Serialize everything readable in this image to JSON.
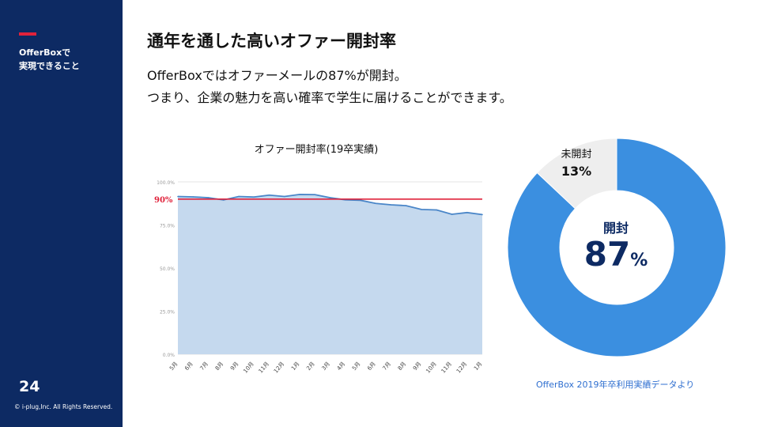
{
  "sidebar": {
    "title": "OfferBoxで\n実現できること",
    "page_number": "24",
    "copyright": "© i-plug,Inc. All Rights Reserved."
  },
  "header": {
    "title": "通年を通した高いオファー開封率",
    "line1": "OfferBoxではオファーメールの87%が開封。",
    "line2": "つまり、企業の魅力を高い確率で学生に届けることができます。"
  },
  "colors": {
    "sidebar": "#0d2a63",
    "accent": "#e0223b",
    "area_fill": "#c5d9ee",
    "area_line": "#4a86c8",
    "donut_main": "#3b8fe0",
    "donut_rest": "#eeeeee"
  },
  "chart_data": [
    {
      "type": "area",
      "title": "オファー開封率(19卒実績)",
      "x": [
        "5月",
        "6月",
        "7月",
        "8月",
        "9月",
        "10月",
        "11月",
        "12月",
        "1月",
        "2月",
        "3月",
        "4月",
        "5月",
        "6月",
        "7月",
        "8月",
        "9月",
        "10月",
        "11月",
        "12月",
        "1月"
      ],
      "series": [
        {
          "values": [
            91.5,
            91.3,
            90.8,
            89.5,
            91.5,
            91.2,
            92.3,
            91.5,
            92.7,
            92.6,
            90.8,
            89.6,
            89.3,
            87.5,
            86.7,
            86.2,
            84.0,
            83.7,
            81.2,
            82.2,
            81.0
          ]
        }
      ],
      "ylim": [
        0,
        100
      ],
      "yticks": [
        "0.0%",
        "25.0%",
        "50.0%",
        "75.0%",
        "100.0%"
      ],
      "reference_line": {
        "value": 90,
        "label": "90%"
      },
      "grid": true
    },
    {
      "type": "pie",
      "style": "donut",
      "slices": [
        {
          "label": "開封",
          "value": 87,
          "display": "87",
          "unit": "%"
        },
        {
          "label": "未開封",
          "value": 13,
          "display": "13%"
        }
      ]
    }
  ],
  "source_note": "OfferBox 2019年卒利用実績データより"
}
